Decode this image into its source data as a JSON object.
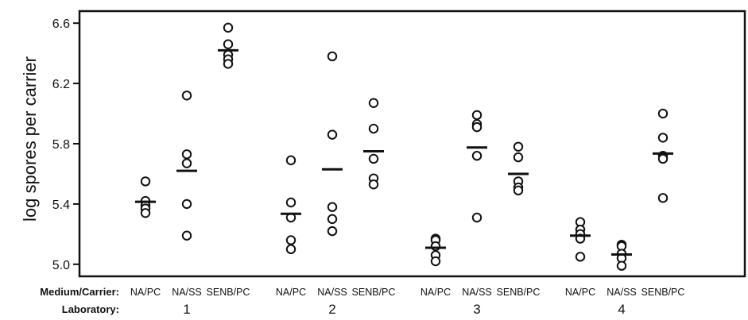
{
  "chart_data": {
    "type": "scatter",
    "title": "",
    "ylabel": "log spores per carrier",
    "ylim": [
      4.92,
      6.68
    ],
    "yticks": [
      5.0,
      5.4,
      5.8,
      6.2,
      6.6
    ],
    "ytick_labels": [
      "5.0",
      "5.4",
      "5.8",
      "6.2",
      "6.6"
    ],
    "grid": false,
    "row_titles": {
      "medium": "Medium/Carrier:",
      "laboratory": "Laboratory:"
    },
    "laboratories": [
      "1",
      "2",
      "3",
      "4"
    ],
    "groups": [
      {
        "laboratory": "1",
        "medium": "NA/PC",
        "values": [
          5.55,
          5.42,
          5.39,
          5.37,
          5.34
        ],
        "mean": 5.415
      },
      {
        "laboratory": "1",
        "medium": "NA/SS",
        "values": [
          6.12,
          5.73,
          5.67,
          5.4,
          5.19
        ],
        "mean": 5.62
      },
      {
        "laboratory": "1",
        "medium": "SENB/PC",
        "values": [
          6.57,
          6.46,
          6.39,
          6.36,
          6.33
        ],
        "mean": 6.42
      },
      {
        "laboratory": "2",
        "medium": "NA/PC",
        "values": [
          5.69,
          5.41,
          5.31,
          5.16,
          5.1
        ],
        "mean": 5.335
      },
      {
        "laboratory": "2",
        "medium": "NA/SS",
        "values": [
          6.38,
          5.86,
          5.38,
          5.3,
          5.22
        ],
        "mean": 5.63
      },
      {
        "laboratory": "2",
        "medium": "SENB/PC",
        "values": [
          6.07,
          5.9,
          5.7,
          5.57,
          5.53
        ],
        "mean": 5.75
      },
      {
        "laboratory": "3",
        "medium": "NA/PC",
        "values": [
          5.17,
          5.16,
          5.12,
          5.06,
          5.02
        ],
        "mean": 5.11
      },
      {
        "laboratory": "3",
        "medium": "NA/SS",
        "values": [
          5.99,
          5.93,
          5.91,
          5.72,
          5.31
        ],
        "mean": 5.775
      },
      {
        "laboratory": "3",
        "medium": "SENB/PC",
        "values": [
          5.78,
          5.71,
          5.55,
          5.51,
          5.49
        ],
        "mean": 5.6
      },
      {
        "laboratory": "4",
        "medium": "NA/PC",
        "values": [
          5.28,
          5.23,
          5.2,
          5.17,
          5.05
        ],
        "mean": 5.19
      },
      {
        "laboratory": "4",
        "medium": "NA/SS",
        "values": [
          5.13,
          5.12,
          5.07,
          5.04,
          4.99
        ],
        "mean": 5.065
      },
      {
        "laboratory": "4",
        "medium": "SENB/PC",
        "values": [
          6.0,
          5.84,
          5.72,
          5.7,
          5.44
        ],
        "mean": 5.735
      }
    ]
  }
}
